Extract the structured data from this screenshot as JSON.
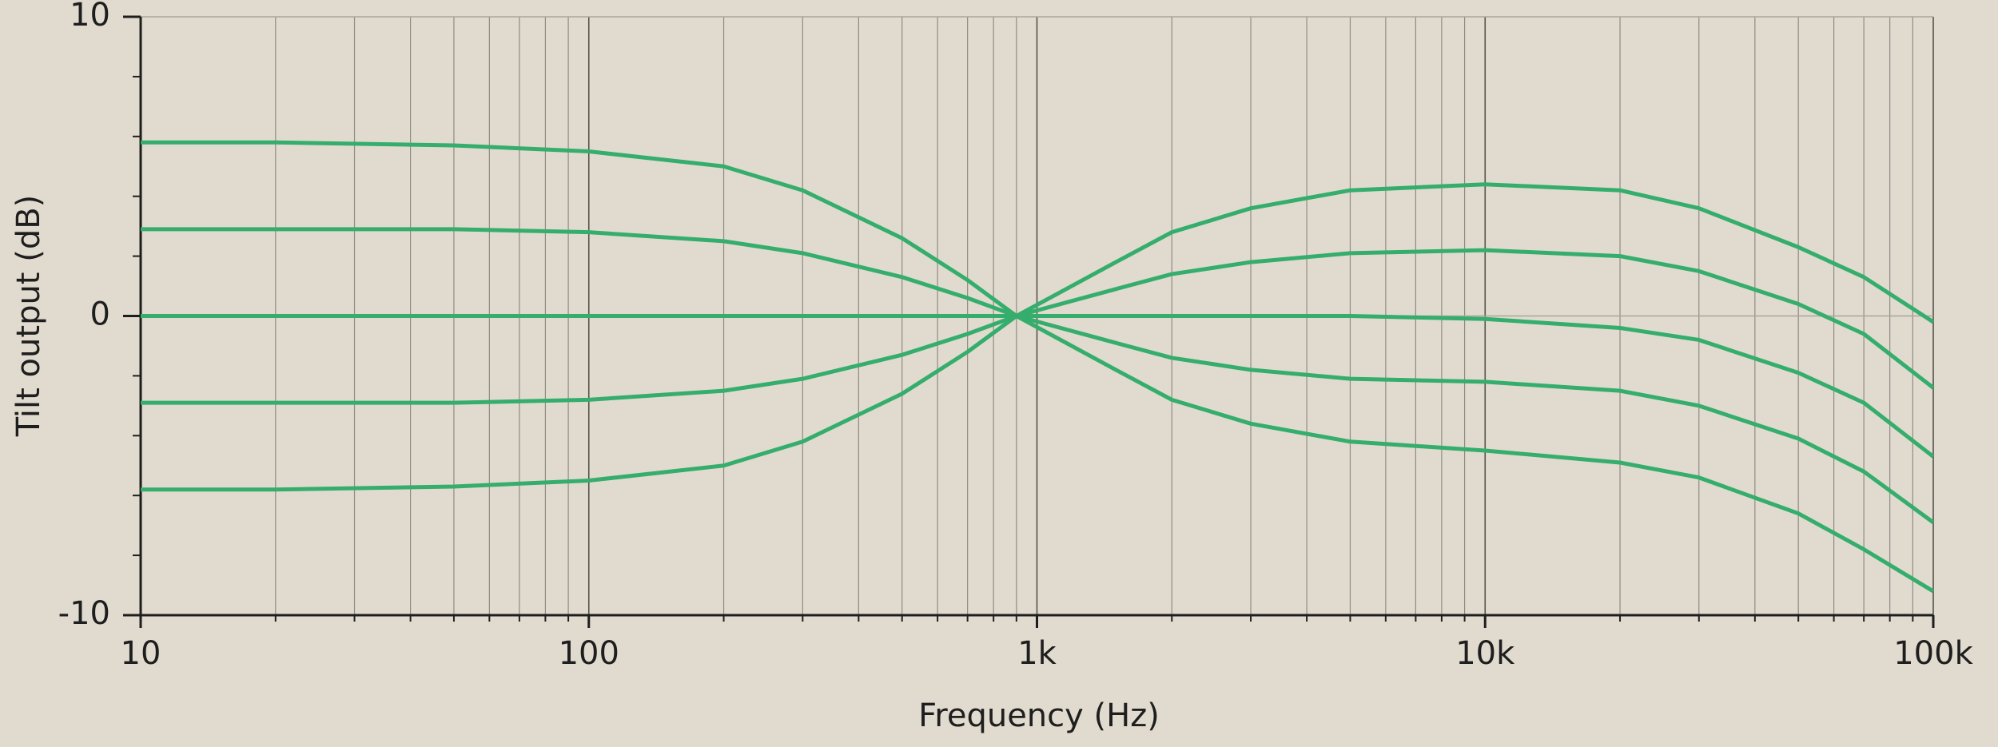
{
  "chart_data": {
    "type": "line",
    "xlabel": "Frequency (Hz)",
    "ylabel": "Tilt output (dB)",
    "log_x": true,
    "grid": true,
    "xlim": [
      10,
      100000
    ],
    "ylim": [
      -10,
      10
    ],
    "xticks": [
      10,
      100,
      {
        "value": 1000,
        "label": "1k"
      },
      {
        "value": 10000,
        "label": "10k"
      },
      {
        "value": 100000,
        "label": "100k"
      }
    ],
    "xminor_ticks": [
      20,
      30,
      40,
      50,
      60,
      70,
      80,
      90,
      200,
      300,
      400,
      500,
      600,
      700,
      800,
      900,
      2000,
      3000,
      4000,
      5000,
      6000,
      7000,
      8000,
      9000,
      20000,
      30000,
      40000,
      50000,
      60000,
      70000,
      80000,
      90000
    ],
    "yticks": [
      -10,
      0,
      10
    ],
    "yminor_ticks": [
      -8,
      -6,
      -4,
      -2,
      2,
      4,
      6,
      8
    ],
    "x": [
      10,
      20,
      50,
      100,
      200,
      300,
      500,
      700,
      900,
      1500,
      2000,
      3000,
      5000,
      10000,
      20000,
      30000,
      50000,
      70000,
      100000
    ],
    "series": [
      {
        "color": "#35ad6c",
        "values": [
          5.8,
          5.8,
          5.7,
          5.5,
          5.0,
          4.2,
          2.6,
          1.2,
          0,
          -1.8,
          -2.8,
          -3.6,
          -4.2,
          -4.5,
          -4.9,
          -5.4,
          -6.6,
          -7.8,
          -9.2
        ]
      },
      {
        "color": "#35ad6c",
        "values": [
          2.9,
          2.9,
          2.9,
          2.8,
          2.5,
          2.1,
          1.3,
          0.6,
          0,
          -0.9,
          -1.4,
          -1.8,
          -2.1,
          -2.2,
          -2.5,
          -3.0,
          -4.1,
          -5.2,
          -6.9
        ]
      },
      {
        "color": "#35ad6c",
        "values": [
          0,
          0,
          0,
          0,
          0,
          0,
          0,
          0,
          0,
          0,
          0,
          0,
          0,
          -0.1,
          -0.4,
          -0.8,
          -1.9,
          -2.9,
          -4.7
        ]
      },
      {
        "color": "#35ad6c",
        "values": [
          -2.9,
          -2.9,
          -2.9,
          -2.8,
          -2.5,
          -2.1,
          -1.3,
          -0.6,
          0,
          0.9,
          1.4,
          1.8,
          2.1,
          2.2,
          2.0,
          1.5,
          0.4,
          -0.6,
          -2.4
        ]
      },
      {
        "color": "#35ad6c",
        "values": [
          -5.8,
          -5.8,
          -5.7,
          -5.5,
          -5.0,
          -4.2,
          -2.6,
          -1.2,
          0,
          1.8,
          2.8,
          3.6,
          4.2,
          4.4,
          4.2,
          3.6,
          2.3,
          1.3,
          -0.2
        ]
      }
    ]
  }
}
